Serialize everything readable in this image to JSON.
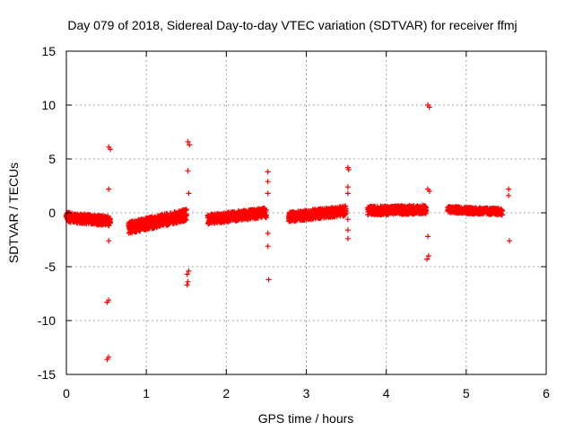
{
  "chart_data": {
    "type": "scatter",
    "title": "Day 079 of 2018, Sidereal Day-to-day VTEC variation (SDTVAR) for receiver ffmj",
    "xlabel": "GPS time / hours",
    "ylabel": "SDTVAR / TECUs",
    "xlim": [
      0,
      6
    ],
    "ylim": [
      -15,
      15
    ],
    "xticks": [
      0,
      1,
      2,
      3,
      4,
      5,
      6
    ],
    "xtick_labels": [
      "0",
      "1",
      "2",
      "3",
      "4",
      "5",
      "6"
    ],
    "yticks": [
      -15,
      -10,
      -5,
      0,
      5,
      10,
      15
    ],
    "ytick_labels": [
      "-15",
      "-10",
      "-5",
      "0",
      "5",
      "10",
      "15"
    ],
    "grid": true,
    "marker": "plus",
    "color": "#ff0000",
    "segments": [
      {
        "x_start": 0.0,
        "x_end": 0.55,
        "y_start": -0.4,
        "y_end": -0.8,
        "spread": 0.9
      },
      {
        "x_start": 0.78,
        "x_end": 1.5,
        "y_start": -1.4,
        "y_end": -0.2,
        "spread": 1.1
      },
      {
        "x_start": 1.77,
        "x_end": 2.5,
        "y_start": -0.6,
        "y_end": 0.0,
        "spread": 0.9
      },
      {
        "x_start": 2.78,
        "x_end": 3.5,
        "y_start": -0.4,
        "y_end": 0.2,
        "spread": 0.9
      },
      {
        "x_start": 3.77,
        "x_end": 4.5,
        "y_start": 0.2,
        "y_end": 0.3,
        "spread": 0.8
      },
      {
        "x_start": 4.77,
        "x_end": 5.45,
        "y_start": 0.3,
        "y_end": 0.1,
        "spread": 0.6
      }
    ],
    "outliers": [
      {
        "x": 0.53,
        "y": 6.1
      },
      {
        "x": 0.55,
        "y": 5.9
      },
      {
        "x": 0.53,
        "y": 2.2
      },
      {
        "x": 0.53,
        "y": -2.6
      },
      {
        "x": 0.53,
        "y": -8.1
      },
      {
        "x": 0.51,
        "y": -8.3
      },
      {
        "x": 0.53,
        "y": -13.4
      },
      {
        "x": 0.51,
        "y": -13.6
      },
      {
        "x": 1.52,
        "y": 6.6
      },
      {
        "x": 1.54,
        "y": 6.3
      },
      {
        "x": 1.52,
        "y": 3.9
      },
      {
        "x": 1.53,
        "y": 1.8
      },
      {
        "x": 1.53,
        "y": -5.4
      },
      {
        "x": 1.51,
        "y": -5.7
      },
      {
        "x": 1.52,
        "y": -6.4
      },
      {
        "x": 1.51,
        "y": -6.7
      },
      {
        "x": 2.52,
        "y": 3.8
      },
      {
        "x": 2.52,
        "y": 2.9
      },
      {
        "x": 2.52,
        "y": 1.8
      },
      {
        "x": 2.52,
        "y": -1.9
      },
      {
        "x": 2.52,
        "y": -3.1
      },
      {
        "x": 2.53,
        "y": -6.2
      },
      {
        "x": 3.52,
        "y": 4.2
      },
      {
        "x": 3.53,
        "y": 4.0
      },
      {
        "x": 3.52,
        "y": 2.4
      },
      {
        "x": 3.52,
        "y": 1.8
      },
      {
        "x": 3.52,
        "y": -0.6
      },
      {
        "x": 3.52,
        "y": -1.6
      },
      {
        "x": 3.52,
        "y": -2.4
      },
      {
        "x": 4.52,
        "y": 10.0
      },
      {
        "x": 4.54,
        "y": 9.8
      },
      {
        "x": 4.52,
        "y": 2.2
      },
      {
        "x": 4.54,
        "y": 2.0
      },
      {
        "x": 4.52,
        "y": -2.2
      },
      {
        "x": 4.53,
        "y": -4.0
      },
      {
        "x": 4.51,
        "y": -4.3
      },
      {
        "x": 5.53,
        "y": 2.2
      },
      {
        "x": 5.53,
        "y": 1.6
      },
      {
        "x": 5.54,
        "y": -2.6
      }
    ]
  }
}
